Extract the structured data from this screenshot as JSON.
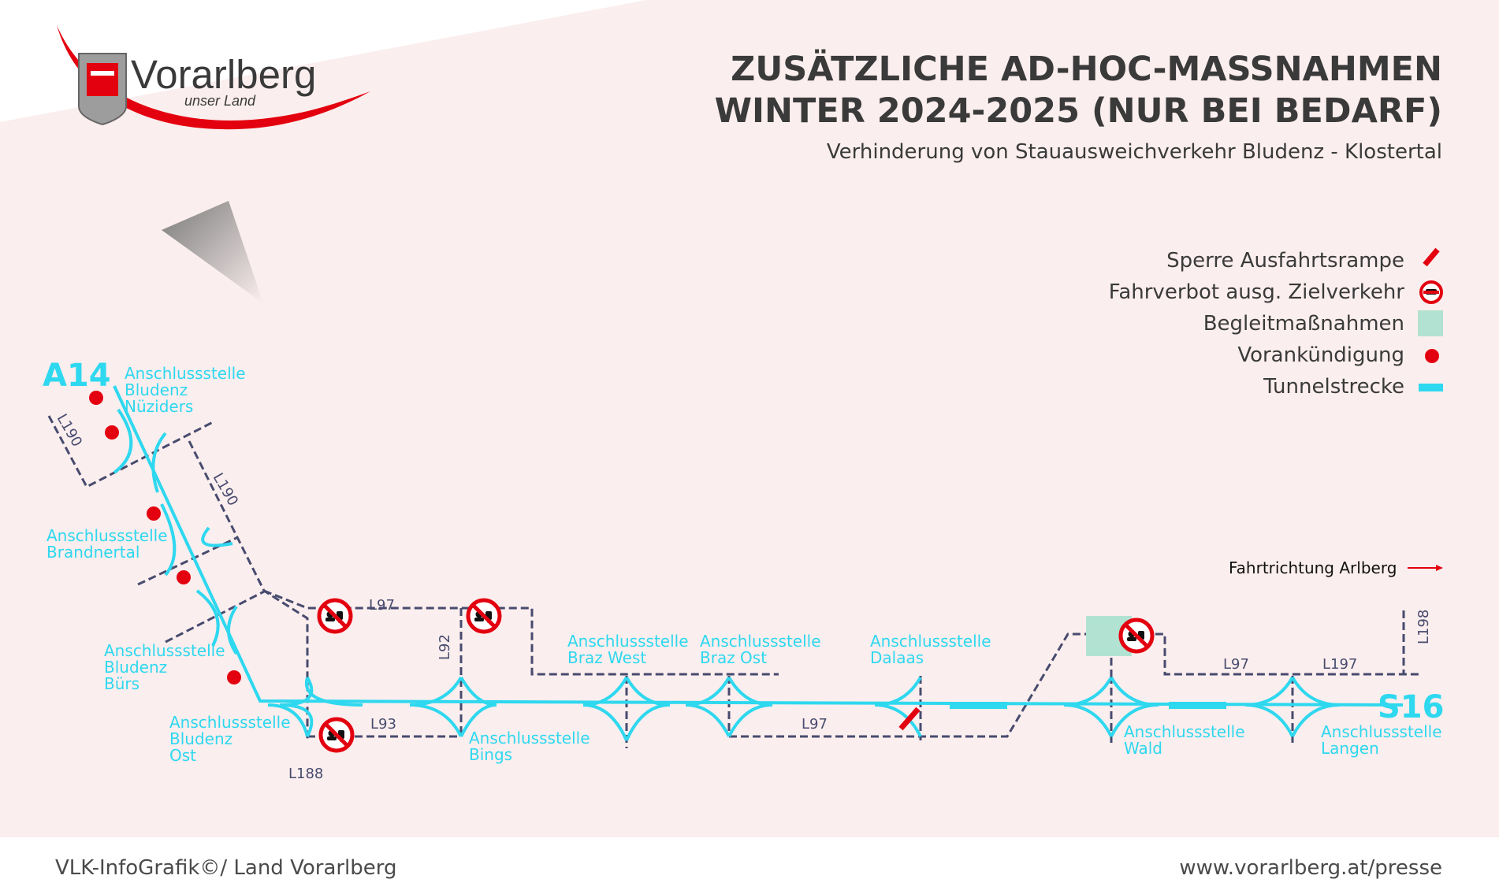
{
  "logo": {
    "name": "Vorarlberg",
    "tagline": "unser Land"
  },
  "title": {
    "line1": "ZUSÄTZLICHE AD-HOC-MASSNAHMEN",
    "line2": "WINTER 2024-2025 (NUR BEI BEDARF)",
    "subtitle": "Verhinderung von Stauausweichverkehr Bludenz - Klostertal"
  },
  "legend": [
    {
      "label": "Sperre Ausfahrtsrampe",
      "icon": "ramp-closure-bar"
    },
    {
      "label": "Fahrverbot ausg. Zielverkehr",
      "icon": "no-entry-sign"
    },
    {
      "label": "Begleitmaßnahmen",
      "icon": "green-square"
    },
    {
      "label": "Vorankündigung",
      "icon": "red-dot"
    },
    {
      "label": "Tunnelstrecke",
      "icon": "cyan-bar"
    }
  ],
  "direction": {
    "label": "Fahrtrichtung Arlberg"
  },
  "motorways": {
    "start": "A14",
    "end": "S16"
  },
  "junctions": {
    "nueziders": [
      "Anschlussstelle",
      "Bludenz",
      "Nüziders"
    ],
    "brandnertal": [
      "Anschlussstelle",
      "Brandnertal"
    ],
    "buers": [
      "Anschlussstelle",
      "Bludenz",
      "Bürs"
    ],
    "ost": [
      "Anschlussstelle",
      "Bludenz",
      "Ost"
    ],
    "bings": [
      "Anschlussstelle",
      "Bings"
    ],
    "brazwest": [
      "Anschlussstelle",
      "Braz West"
    ],
    "brazost": [
      "Anschlussstelle",
      "Braz Ost"
    ],
    "dalaas": [
      "Anschlussstelle",
      "Dalaas"
    ],
    "wald": [
      "Anschlussstelle",
      "Wald"
    ],
    "langen": [
      "Anschlussstelle",
      "Langen"
    ]
  },
  "roads": {
    "l190a": "L190",
    "l190b": "L190",
    "l97a": "L97",
    "l92": "L92",
    "l93": "L93",
    "l188": "L188",
    "l97b": "L97",
    "l97c": "L97",
    "l197": "L197",
    "l198": "L198"
  },
  "colors": {
    "motorway": "#2ed8ef",
    "road": "#474b6e",
    "accent": "#e3000f",
    "measure": "#b2e2d2",
    "background": "#fbeeee",
    "text": "#3a3a3a"
  },
  "footer": {
    "left": "VLK-InfoGrafik©/ Land Vorarlberg",
    "right": "www.vorarlberg.at/presse"
  }
}
